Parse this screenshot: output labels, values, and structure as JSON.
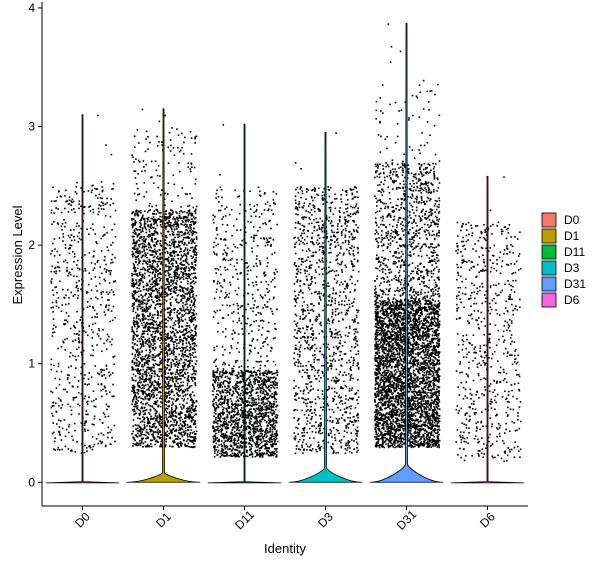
{
  "chart_data": {
    "type": "violin",
    "xlabel": "Identity",
    "ylabel": "Expression Level",
    "ylim": [
      -0.2,
      4.05
    ],
    "yticks": [
      0,
      1,
      2,
      3,
      4
    ],
    "categories": [
      "D0",
      "D1",
      "D11",
      "D3",
      "D31",
      "D6"
    ],
    "legend_position": "right",
    "legend": [
      {
        "label": "D0",
        "color": "#F8766D"
      },
      {
        "label": "D1",
        "color": "#B79F00"
      },
      {
        "label": "D11",
        "color": "#00BA38"
      },
      {
        "label": "D3",
        "color": "#00BFC4"
      },
      {
        "label": "D31",
        "color": "#619CFF"
      },
      {
        "label": "D6",
        "color": "#F564E3"
      }
    ],
    "series": [
      {
        "category": "D0",
        "max": 3.1,
        "violin_peak_height": 0.01,
        "violin_half_width_frac": 0.0,
        "dot_bands": [
          [
            0.25,
            2.55,
            650
          ]
        ],
        "high_outliers": [
          2.77,
          2.85,
          3.1
        ]
      },
      {
        "category": "D1",
        "max": 3.15,
        "violin_peak_height": 0.08,
        "violin_half_width_frac": 0.35,
        "dot_bands": [
          [
            0.3,
            2.3,
            3200
          ],
          [
            2.3,
            3.0,
            120
          ]
        ],
        "high_outliers": [
          3.05,
          3.1,
          3.15
        ]
      },
      {
        "category": "D11",
        "max": 3.02,
        "violin_peak_height": 0.01,
        "violin_half_width_frac": 0.0,
        "dot_bands": [
          [
            0.22,
            0.95,
            1500
          ],
          [
            0.95,
            2.5,
            420
          ]
        ],
        "high_outliers": [
          2.6,
          3.02
        ]
      },
      {
        "category": "D3",
        "max": 2.95,
        "violin_peak_height": 0.12,
        "violin_half_width_frac": 0.5,
        "dot_bands": [
          [
            0.25,
            2.5,
            1300
          ]
        ],
        "high_outliers": [
          2.65,
          2.7,
          2.95
        ]
      },
      {
        "category": "D31",
        "max": 3.87,
        "violin_peak_height": 0.15,
        "violin_half_width_frac": 0.55,
        "dot_bands": [
          [
            0.3,
            1.55,
            3800
          ],
          [
            1.55,
            2.7,
            900
          ],
          [
            2.7,
            3.4,
            60
          ]
        ],
        "high_outliers": [
          3.55,
          3.64,
          3.68,
          3.87
        ]
      },
      {
        "category": "D6",
        "max": 2.58,
        "violin_peak_height": 0.01,
        "violin_half_width_frac": 0.0,
        "dot_bands": [
          [
            0.18,
            2.2,
            620
          ]
        ],
        "high_outliers": [
          2.3,
          2.58
        ]
      }
    ]
  }
}
